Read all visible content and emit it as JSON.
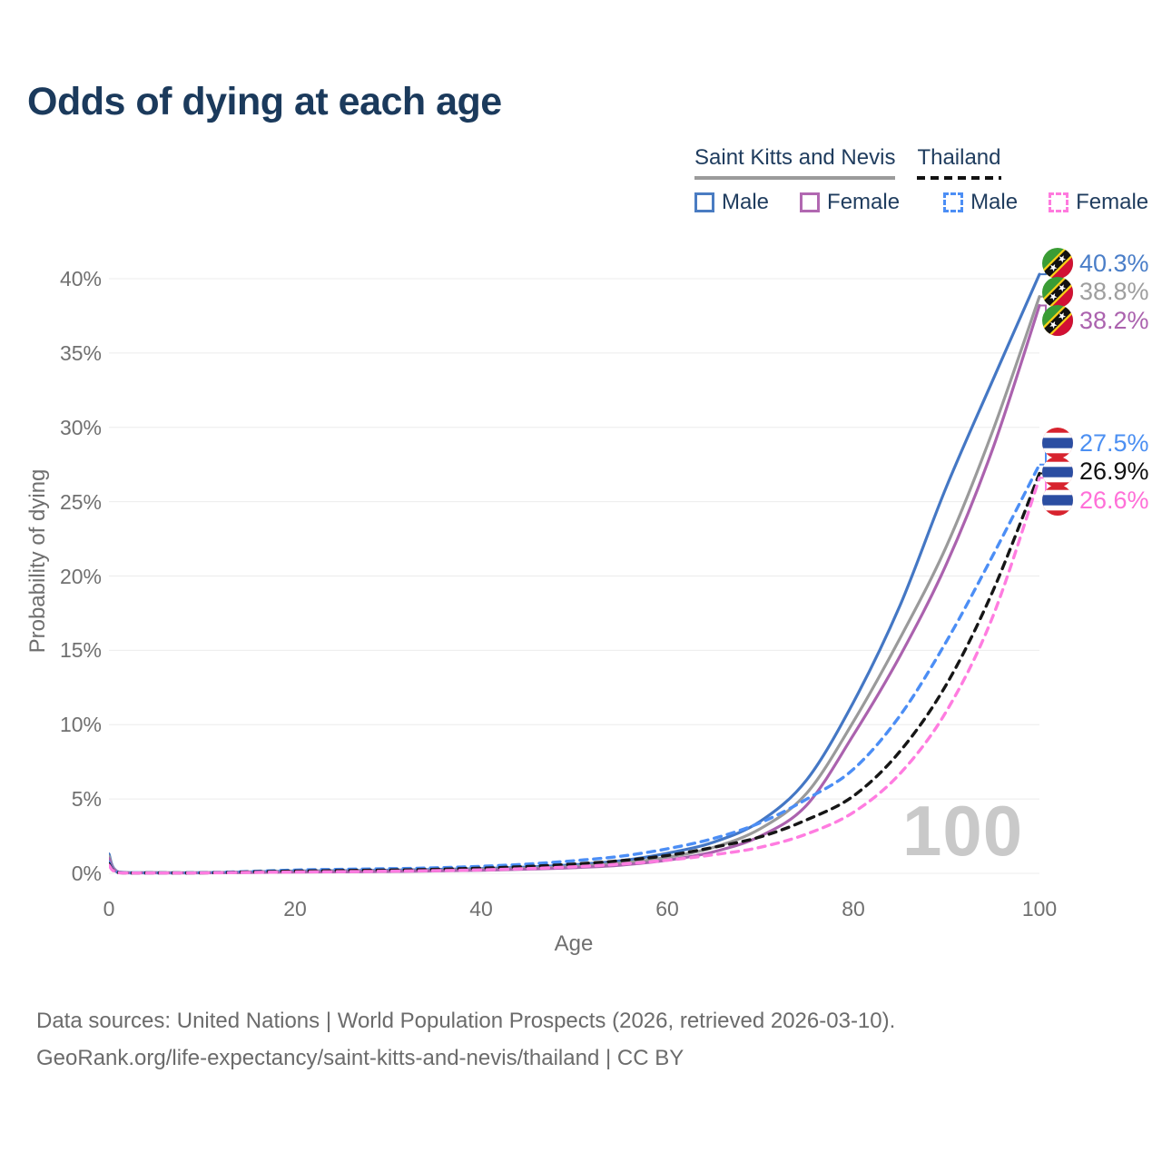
{
  "title": "Odds of dying at each age",
  "legend": {
    "groups": [
      {
        "name": "Saint Kitts and Nevis",
        "line_style": "solid",
        "underline_color": "#9b9b9b"
      },
      {
        "name": "Thailand",
        "line_style": "dashed",
        "underline_color": "#111111"
      }
    ],
    "items": [
      {
        "label": "Male",
        "country": "Saint Kitts and Nevis",
        "swatch_color": "#4a7cc2",
        "swatch_style": "solid"
      },
      {
        "label": "Female",
        "country": "Saint Kitts and Nevis",
        "swatch_color": "#b168b1",
        "swatch_style": "solid"
      },
      {
        "label": "Male",
        "country": "Thailand",
        "swatch_color": "#4c8ef5",
        "swatch_style": "dashed"
      },
      {
        "label": "Female",
        "country": "Thailand",
        "swatch_color": "#ff7ade",
        "swatch_style": "dashed"
      }
    ]
  },
  "chart_data": {
    "type": "line",
    "title": "Odds of dying at each age",
    "xlabel": "Age",
    "ylabel": "Probability of dying",
    "xlim": [
      0,
      100
    ],
    "ylim": [
      0,
      41.6
    ],
    "grid": true,
    "legend_position": "top-right",
    "x_ticks": [
      0,
      20,
      40,
      60,
      80,
      100
    ],
    "y_ticks": [
      {
        "v": 0,
        "label": "0%"
      },
      {
        "v": 5,
        "label": "5%"
      },
      {
        "v": 10,
        "label": "10%"
      },
      {
        "v": 15,
        "label": "15%"
      },
      {
        "v": 20,
        "label": "20%"
      },
      {
        "v": 25,
        "label": "25%"
      },
      {
        "v": 30,
        "label": "30%"
      },
      {
        "v": 35,
        "label": "35%"
      },
      {
        "v": 40,
        "label": "40%"
      }
    ],
    "x": [
      0,
      1,
      5,
      10,
      15,
      20,
      25,
      30,
      35,
      40,
      45,
      50,
      55,
      60,
      65,
      70,
      75,
      80,
      85,
      90,
      95,
      100
    ],
    "series": [
      {
        "name": "Saint Kitts and Nevis — Male",
        "color": "#4477c4",
        "dash": null,
        "values": [
          1.3,
          0.09,
          0.04,
          0.04,
          0.09,
          0.15,
          0.18,
          0.21,
          0.26,
          0.32,
          0.42,
          0.58,
          0.85,
          1.35,
          2.1,
          3.5,
          6.3,
          11.5,
          18.0,
          26.0,
          33.2,
          40.3
        ],
        "end_label": "40.3%",
        "label_color": "#4a7ec8",
        "flag": "saint-kitts-and-nevis-flag-icon"
      },
      {
        "name": "Saint Kitts and Nevis — Both sexes",
        "color": "#9a9a9a",
        "dash": null,
        "values": [
          1.15,
          0.08,
          0.035,
          0.035,
          0.07,
          0.12,
          0.14,
          0.16,
          0.2,
          0.26,
          0.34,
          0.47,
          0.68,
          1.08,
          1.75,
          3.0,
          5.4,
          10.2,
          15.8,
          22.0,
          29.8,
          38.8
        ],
        "end_label": "38.8%",
        "label_color": "#9e9e9e",
        "flag": "saint-kitts-and-nevis-flag-icon"
      },
      {
        "name": "Saint Kitts and Nevis — Female",
        "color": "#ab62ae",
        "dash": null,
        "values": [
          1.0,
          0.07,
          0.03,
          0.03,
          0.05,
          0.08,
          0.1,
          0.12,
          0.16,
          0.21,
          0.28,
          0.38,
          0.55,
          0.88,
          1.45,
          2.5,
          4.6,
          9.3,
          14.6,
          20.8,
          28.6,
          38.2
        ],
        "end_label": "38.2%",
        "label_color": "#ab62ae",
        "flag": "saint-kitts-and-nevis-flag-icon"
      },
      {
        "name": "Thailand — Male",
        "color": "#4c8ef5",
        "dash": [
          8,
          7
        ],
        "values": [
          0.75,
          0.06,
          0.03,
          0.04,
          0.12,
          0.22,
          0.27,
          0.31,
          0.37,
          0.47,
          0.62,
          0.85,
          1.15,
          1.65,
          2.35,
          3.4,
          5.0,
          7.0,
          10.6,
          15.6,
          21.4,
          27.5
        ],
        "end_label": "27.5%",
        "label_color": "#4b8ff2",
        "flag": "thailand-flag-icon"
      },
      {
        "name": "Thailand — Both sexes",
        "color": "#161616",
        "dash": [
          8,
          7
        ],
        "values": [
          0.65,
          0.05,
          0.025,
          0.03,
          0.09,
          0.15,
          0.19,
          0.22,
          0.27,
          0.35,
          0.46,
          0.62,
          0.85,
          1.2,
          1.75,
          2.45,
          3.6,
          5.2,
          8.2,
          12.7,
          19.0,
          26.9
        ],
        "end_label": "26.9%",
        "label_color": "#111111",
        "flag": "thailand-flag-icon"
      },
      {
        "name": "Thailand — Female",
        "color": "#ff7ce0",
        "dash": [
          8,
          7
        ],
        "values": [
          0.55,
          0.045,
          0.02,
          0.025,
          0.06,
          0.09,
          0.11,
          0.14,
          0.18,
          0.23,
          0.32,
          0.44,
          0.62,
          0.88,
          1.25,
          1.75,
          2.65,
          4.1,
          6.7,
          10.9,
          17.3,
          26.6
        ],
        "end_label": "26.6%",
        "label_color": "#ff6fd8",
        "flag": "thailand-flag-icon"
      }
    ]
  },
  "watermark": "100",
  "flags": {
    "saint_kitts_green": "#3a9c35",
    "saint_kitts_red": "#d21034",
    "saint_kitts_yellow": "#fcd116",
    "saint_kitts_black": "#111111",
    "thailand_red": "#d7232e",
    "thailand_blue": "#2b4ea2"
  },
  "colors": {
    "title_text": "#1b3a5c",
    "legend_text": "#1f3c5e",
    "axis_text": "#707070",
    "gridline": "#ececec",
    "watermark": "#c9c9c9",
    "footer_text": "#6b6b6b"
  },
  "footer": {
    "line1": "Data sources: United Nations | World Population Prospects (2026, retrieved 2026-03-10).",
    "line2": "GeoRank.org/life-expectancy/saint-kitts-and-nevis/thailand | CC BY"
  }
}
